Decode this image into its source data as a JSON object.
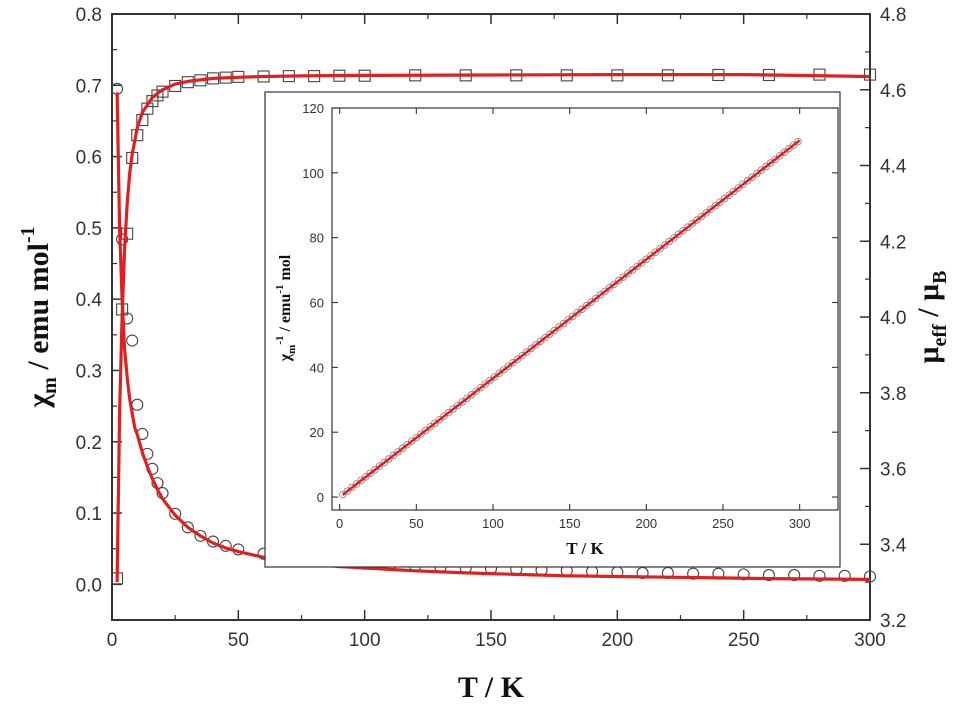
{
  "chart_data": [
    {
      "type": "scatter",
      "role": "main",
      "xlabel": "T / K",
      "ylabel_left": {
        "symbol": "χ",
        "sub": "m",
        "text": " / emu mol",
        "sup": "-1"
      },
      "ylabel_right": {
        "symbol": "μ",
        "sub": "eff",
        "mid": " / μ",
        "sub2": "B"
      },
      "xlim": [
        0,
        300
      ],
      "ylim_left": [
        -0.05,
        0.8
      ],
      "ylim_right": [
        3.2,
        4.8
      ],
      "x_ticks": [
        "0",
        "50",
        "100",
        "150",
        "200",
        "250",
        "300"
      ],
      "y_left_ticks": [
        "0.0",
        "0.1",
        "0.2",
        "0.3",
        "0.4",
        "0.5",
        "0.6",
        "0.7",
        "0.8"
      ],
      "y_right_ticks": [
        "3.2",
        "3.4",
        "3.6",
        "3.8",
        "4.0",
        "4.2",
        "4.4",
        "4.6",
        "4.8"
      ],
      "grid": false,
      "series": [
        {
          "marker": "circle",
          "axis": "left",
          "color": "#444444",
          "x": [
            2,
            4,
            6,
            8,
            10,
            12,
            14,
            16,
            18,
            20,
            25,
            30,
            35,
            40,
            45,
            50,
            60,
            70,
            80,
            90,
            100,
            110,
            120,
            130,
            140,
            150,
            160,
            170,
            180,
            190,
            200,
            210,
            220,
            230,
            240,
            250,
            260,
            270,
            280,
            290,
            300
          ],
          "y": [
            0.695,
            0.484,
            0.373,
            0.342,
            0.252,
            0.211,
            0.183,
            0.162,
            0.142,
            0.128,
            0.099,
            0.08,
            0.068,
            0.06,
            0.054,
            0.049,
            0.043,
            0.038,
            0.034,
            0.031,
            0.029,
            0.027,
            0.026,
            0.024,
            0.023,
            0.022,
            0.021,
            0.02,
            0.019,
            0.018,
            0.017,
            0.016,
            0.016,
            0.015,
            0.015,
            0.014,
            0.013,
            0.013,
            0.012,
            0.012,
            0.011
          ]
        },
        {
          "marker": "square",
          "axis": "right",
          "color": "#444444",
          "x": [
            2,
            4,
            6,
            8,
            10,
            12,
            14,
            16,
            18,
            20,
            25,
            30,
            35,
            40,
            45,
            50,
            60,
            70,
            80,
            90,
            100,
            120,
            140,
            160,
            180,
            200,
            220,
            240,
            260,
            280,
            300
          ],
          "y": [
            3.31,
            4.02,
            4.22,
            4.42,
            4.48,
            4.52,
            4.55,
            4.57,
            4.585,
            4.595,
            4.61,
            4.62,
            4.625,
            4.63,
            4.632,
            4.634,
            4.635,
            4.636,
            4.636,
            4.637,
            4.637,
            4.638,
            4.638,
            4.638,
            4.638,
            4.638,
            4.638,
            4.639,
            4.639,
            4.64,
            4.64
          ]
        }
      ],
      "fits": [
        {
          "axis": "left",
          "color": "#e02020",
          "x": [
            2,
            3,
            4,
            5,
            6,
            7,
            8,
            9,
            10,
            12,
            14,
            16,
            18,
            20,
            25,
            30,
            35,
            40,
            45,
            50,
            60,
            70,
            80,
            90,
            100,
            120,
            140,
            160,
            180,
            200,
            220,
            240,
            260,
            280,
            300
          ],
          "y": [
            0.69,
            0.5,
            0.4,
            0.33,
            0.29,
            0.26,
            0.24,
            0.22,
            0.21,
            0.185,
            0.165,
            0.148,
            0.133,
            0.12,
            0.097,
            0.08,
            0.068,
            0.058,
            0.051,
            0.046,
            0.038,
            0.032,
            0.028,
            0.025,
            0.023,
            0.019,
            0.016,
            0.014,
            0.012,
            0.011,
            0.01,
            0.009,
            0.008,
            0.0075,
            0.007
          ]
        },
        {
          "axis": "right",
          "color": "#e02020",
          "x": [
            2,
            3,
            4,
            5,
            6,
            7,
            8,
            10,
            12,
            14,
            16,
            18,
            20,
            25,
            30,
            40,
            50,
            60,
            80,
            100,
            150,
            200,
            250,
            300
          ],
          "y": [
            3.3,
            3.75,
            4.0,
            4.18,
            4.3,
            4.38,
            4.43,
            4.5,
            4.54,
            4.56,
            4.58,
            4.59,
            4.6,
            4.615,
            4.622,
            4.63,
            4.633,
            4.635,
            4.637,
            4.638,
            4.639,
            4.64,
            4.64,
            4.635
          ]
        }
      ]
    },
    {
      "type": "scatter",
      "role": "inset",
      "xlabel": "T / K",
      "ylabel": {
        "symbol": "χ",
        "sub": "m",
        "sup": "-1",
        "text": " / emu",
        "sup2": "-1",
        "text2": " mol"
      },
      "xlim": [
        -5,
        325
      ],
      "ylim": [
        -4,
        120
      ],
      "x_ticks": [
        "0",
        "50",
        "100",
        "150",
        "200",
        "250",
        "300"
      ],
      "y_ticks": [
        "0",
        "20",
        "40",
        "60",
        "80",
        "100",
        "120"
      ],
      "grid": false,
      "series": [
        {
          "marker": "circle",
          "color": "#888888",
          "x_start": 2,
          "x_end": 300,
          "x_step": 3,
          "slope": 0.3667,
          "intercept": 0.0
        }
      ],
      "fits": [
        {
          "color": "#e02020",
          "x": [
            2,
            300
          ],
          "y": [
            0.7,
            110.0
          ]
        }
      ]
    }
  ]
}
